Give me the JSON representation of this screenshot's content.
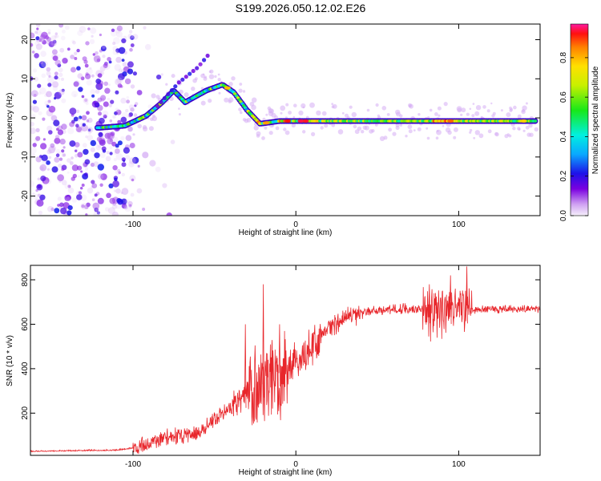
{
  "title": "S199.2026.050.12.02.E26",
  "chart_data": [
    {
      "type": "heatmap",
      "xlabel": "Height of straight line (km)",
      "ylabel": "Frequency (Hz)",
      "xlim": [
        -163,
        150
      ],
      "ylim": [
        -25,
        24
      ],
      "x_ticks": [
        -100,
        0,
        100
      ],
      "y_ticks": [
        -20,
        -10,
        0,
        10,
        20
      ],
      "colorbar": {
        "label": "Normalized spectral amplitude",
        "range": [
          0,
          0.97
        ],
        "ticks": [
          0.0,
          0.2,
          0.4,
          0.6,
          0.8
        ]
      },
      "ridge": [
        {
          "x": -120,
          "y": -2.5
        },
        {
          "x": -105,
          "y": -2
        },
        {
          "x": -92,
          "y": 0.5
        },
        {
          "x": -82,
          "y": 4
        },
        {
          "x": -75,
          "y": 7
        },
        {
          "x": -68,
          "y": 4
        },
        {
          "x": -55,
          "y": 7
        },
        {
          "x": -45,
          "y": 8.5
        },
        {
          "x": -38,
          "y": 6.5
        },
        {
          "x": -30,
          "y": 2
        },
        {
          "x": -22,
          "y": -1.5
        },
        {
          "x": -10,
          "y": -0.8
        },
        {
          "x": 0,
          "y": -0.8
        },
        {
          "x": 40,
          "y": -0.8
        },
        {
          "x": 100,
          "y": -0.8
        },
        {
          "x": 148,
          "y": -0.8
        }
      ],
      "branch": [
        {
          "x": -85,
          "y": 3
        },
        {
          "x": -72,
          "y": 9
        },
        {
          "x": -60,
          "y": 13
        },
        {
          "x": -52,
          "y": 17
        }
      ]
    },
    {
      "type": "line",
      "xlabel": "Height of straight line (km)",
      "ylabel": "SNR (10 * v/v)",
      "xlim": [
        -163,
        150
      ],
      "ylim": [
        10,
        865
      ],
      "x_ticks": [
        -100,
        0,
        100
      ],
      "y_ticks": [
        200,
        400,
        600,
        800
      ],
      "color": "#e8262b",
      "trend": [
        {
          "x": -163,
          "y": 30
        },
        {
          "x": -110,
          "y": 35
        },
        {
          "x": -95,
          "y": 50
        },
        {
          "x": -80,
          "y": 90
        },
        {
          "x": -60,
          "y": 110
        },
        {
          "x": -50,
          "y": 170
        },
        {
          "x": -40,
          "y": 230
        },
        {
          "x": -30,
          "y": 290
        },
        {
          "x": -20,
          "y": 330
        },
        {
          "x": -10,
          "y": 380
        },
        {
          "x": 0,
          "y": 430
        },
        {
          "x": 10,
          "y": 500
        },
        {
          "x": 20,
          "y": 580
        },
        {
          "x": 30,
          "y": 630
        },
        {
          "x": 45,
          "y": 660
        },
        {
          "x": 70,
          "y": 670
        },
        {
          "x": 90,
          "y": 660
        },
        {
          "x": 110,
          "y": 665
        },
        {
          "x": 150,
          "y": 670
        }
      ],
      "peaks": [
        {
          "x": -31,
          "y": 600
        },
        {
          "x": -20,
          "y": 780
        },
        {
          "x": -10,
          "y": 600
        },
        {
          "x": 82,
          "y": 780
        },
        {
          "x": 95,
          "y": 820
        },
        {
          "x": 105,
          "y": 860
        }
      ]
    }
  ]
}
